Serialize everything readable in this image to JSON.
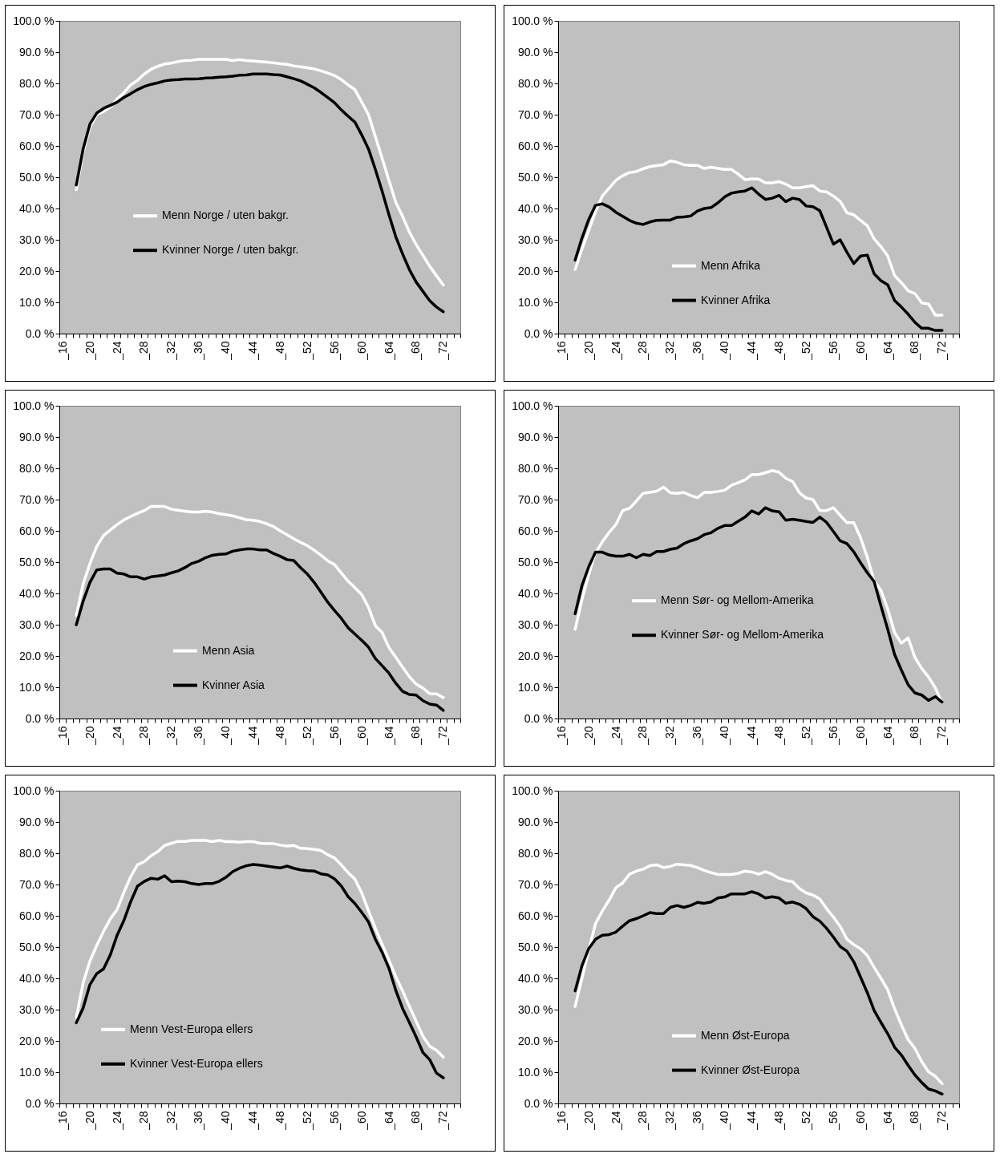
{
  "chart_data": [
    {
      "type": "line",
      "categories": [
        "_16",
        null,
        null,
        null,
        "_20",
        null,
        null,
        null,
        "_24",
        null,
        null,
        null,
        "_28",
        null,
        null,
        null,
        "_32",
        null,
        null,
        null,
        "_36",
        null,
        null,
        null,
        "_40",
        null,
        null,
        null,
        "_44",
        null,
        null,
        null,
        "_48",
        null,
        null,
        null,
        "_52",
        null,
        null,
        null,
        "_56",
        null,
        null,
        null,
        "_60",
        null,
        null,
        null,
        "_64",
        null,
        null,
        null,
        "_68",
        null,
        null,
        null,
        "_72",
        null,
        null
      ],
      "ylim": [
        0,
        100
      ],
      "yticks": [
        {
          "value": 0,
          "label": "0.0 %"
        },
        {
          "value": 10,
          "label": "10.0 %"
        },
        {
          "value": 20,
          "label": "20.0 %"
        },
        {
          "value": 30,
          "label": "30.0 %"
        },
        {
          "value": 40,
          "label": "40.0 %"
        },
        {
          "value": 50,
          "label": "50.0 %"
        },
        {
          "value": 60,
          "label": "60.0 %"
        },
        {
          "value": 70,
          "label": "70.0 %"
        },
        {
          "value": 80,
          "label": "80.0 %"
        },
        {
          "value": 90,
          "label": "90.0 %"
        },
        {
          "value": 100,
          "label": "100.0 %"
        }
      ],
      "legend": "left",
      "series": [
        {
          "name": "Menn Norge / uten bakgr.",
          "color": "#ffffff",
          "values": [
            null,
            null,
            46,
            58,
            66,
            70,
            71,
            72.5,
            75,
            77,
            79.5,
            81,
            83,
            84.5,
            85.5,
            86.2,
            86.5,
            87,
            87.3,
            87.4,
            87.7,
            87.7,
            87.7,
            87.7,
            87.7,
            87.3,
            87.6,
            87.3,
            87.2,
            87,
            86.8,
            86.6,
            86.3,
            86.1,
            85.6,
            85.3,
            85,
            84.6,
            84,
            83.3,
            82.5,
            81.2,
            79.5,
            78,
            74,
            70,
            63,
            56,
            49,
            42,
            37.5,
            32.5,
            28.5,
            25,
            21.5,
            18.5,
            15.5,
            null,
            null
          ]
        },
        {
          "name": "Kvinner Norge / uten bakgr.",
          "color": "#000000",
          "values": [
            null,
            null,
            47.5,
            59,
            67,
            70.5,
            72,
            73,
            74,
            75.5,
            76.7,
            78,
            79,
            79.7,
            80.2,
            80.8,
            81.1,
            81.2,
            81.4,
            81.4,
            81.5,
            81.7,
            81.8,
            82,
            82.1,
            82.3,
            82.6,
            82.7,
            83,
            83,
            83,
            82.8,
            82.7,
            82.1,
            81.5,
            80.8,
            79.7,
            78.6,
            77.1,
            75.5,
            73.8,
            71.5,
            69.5,
            67.6,
            63.5,
            59,
            52.5,
            45.5,
            38,
            31,
            25.5,
            20.5,
            16.5,
            13.5,
            10.5,
            8.5,
            7,
            null,
            null
          ]
        }
      ]
    },
    {
      "type": "line",
      "categories": [
        "_16",
        null,
        null,
        null,
        "_20",
        null,
        null,
        null,
        "_24",
        null,
        null,
        null,
        "_28",
        null,
        null,
        null,
        "_32",
        null,
        null,
        null,
        "_36",
        null,
        null,
        null,
        "_40",
        null,
        null,
        null,
        "_44",
        null,
        null,
        null,
        "_48",
        null,
        null,
        null,
        "_52",
        null,
        null,
        null,
        "_56",
        null,
        null,
        null,
        "_60",
        null,
        null,
        null,
        "_64",
        null,
        null,
        null,
        "_68",
        null,
        null,
        null,
        "_72",
        null,
        null
      ],
      "ylim": [
        0,
        100
      ],
      "yticks": [
        {
          "value": 0,
          "label": "0.0 %"
        },
        {
          "value": 10,
          "label": "10.0 %"
        },
        {
          "value": 20,
          "label": "20.0 %"
        },
        {
          "value": 30,
          "label": "30.0 %"
        },
        {
          "value": 40,
          "label": "40.0 %"
        },
        {
          "value": 50,
          "label": "50.0 %"
        },
        {
          "value": 60,
          "label": "60.0 %"
        },
        {
          "value": 70,
          "label": "70.0 %"
        },
        {
          "value": 80,
          "label": "80.0 %"
        },
        {
          "value": 90,
          "label": "90.0 %"
        },
        {
          "value": 100,
          "label": "100.0 %"
        }
      ],
      "legend": "bottom",
      "series": [
        {
          "name": "Menn Afrika",
          "color": "#ffffff",
          "values": [
            null,
            null,
            20.5,
            27,
            33,
            39,
            44,
            46.5,
            49,
            50.5,
            51.5,
            51.8,
            52.7,
            53.4,
            53.7,
            54,
            55.2,
            54.8,
            54,
            53.8,
            53.8,
            52.8,
            53.2,
            52.8,
            52.5,
            52.5,
            51,
            49.2,
            49.5,
            49.4,
            48.2,
            48.2,
            48.6,
            47.8,
            46.6,
            46.6,
            47,
            47.3,
            45.6,
            45.3,
            44,
            42.3,
            38.6,
            38,
            36.2,
            34.5,
            30.3,
            27.8,
            24.8,
            18.6,
            16.3,
            13.7,
            12.8,
            9.8,
            9.5,
            5.9,
            5.9,
            null,
            null
          ]
        },
        {
          "name": "Kvinner Afrika",
          "color": "#000000",
          "values": [
            null,
            null,
            23.5,
            30.5,
            36.5,
            41,
            41.5,
            40.5,
            38.8,
            37.5,
            36.2,
            35.3,
            34.9,
            35.7,
            36.2,
            36.3,
            36.3,
            37.2,
            37.3,
            37.6,
            39.2,
            40,
            40.3,
            41.8,
            43.7,
            44.9,
            45.3,
            45.6,
            46.6,
            44.6,
            42.9,
            43.3,
            44.2,
            42.2,
            43.3,
            42.9,
            40.8,
            40.6,
            39.3,
            34,
            28.6,
            30,
            26,
            22.4,
            24.8,
            25.1,
            19.1,
            16.9,
            15.6,
            10.6,
            8.5,
            6.2,
            3.6,
            1.7,
            1.7,
            1,
            1,
            null,
            null
          ]
        }
      ]
    },
    {
      "type": "line",
      "categories": [
        "_16",
        null,
        null,
        null,
        "_20",
        null,
        null,
        null,
        "_24",
        null,
        null,
        null,
        "_28",
        null,
        null,
        null,
        "_32",
        null,
        null,
        null,
        "_36",
        null,
        null,
        null,
        "_40",
        null,
        null,
        null,
        "_44",
        null,
        null,
        null,
        "_48",
        null,
        null,
        null,
        "_52",
        null,
        null,
        null,
        "_56",
        null,
        null,
        null,
        "_60",
        null,
        null,
        null,
        "_64",
        null,
        null,
        null,
        "_68",
        null,
        null,
        null,
        "_72",
        null,
        null
      ],
      "ylim": [
        0,
        100
      ],
      "yticks": [
        {
          "value": 0,
          "label": "0.0 %"
        },
        {
          "value": 10,
          "label": "10.0 %"
        },
        {
          "value": 20,
          "label": "20.0 %"
        },
        {
          "value": 30,
          "label": "30.0 %"
        },
        {
          "value": 40,
          "label": "40.0 %"
        },
        {
          "value": 50,
          "label": "50.0 %"
        },
        {
          "value": 60,
          "label": "60.0 %"
        },
        {
          "value": 70,
          "label": "70.0 %"
        },
        {
          "value": 80,
          "label": "80.0 %"
        },
        {
          "value": 90,
          "label": "90.0 %"
        },
        {
          "value": 100,
          "label": "100.0 %"
        }
      ],
      "legend": "bottom",
      "series": [
        {
          "name": "Menn Asia",
          "color": "#ffffff",
          "values": [
            null,
            null,
            33,
            43,
            49.5,
            55,
            58.5,
            60.3,
            62,
            63.5,
            64.6,
            65.6,
            66.5,
            67.8,
            67.8,
            67.8,
            66.9,
            66.6,
            66.3,
            66,
            66,
            66.3,
            66,
            65.5,
            65.2,
            64.8,
            64.2,
            63.6,
            63.4,
            63,
            62.3,
            61.4,
            60,
            58.8,
            57.5,
            56.3,
            55.3,
            53.8,
            52.2,
            50.4,
            49.2,
            46.5,
            43.9,
            41.8,
            39.6,
            35.5,
            29.7,
            27.5,
            22.7,
            19.6,
            16.5,
            13.4,
            11,
            9.7,
            7.9,
            7.9,
            6.7,
            null,
            null
          ]
        },
        {
          "name": "Kvinner Asia",
          "color": "#000000",
          "values": [
            null,
            null,
            30,
            37.5,
            43.5,
            47.5,
            47.8,
            47.8,
            46.5,
            46.2,
            45.3,
            45.3,
            44.6,
            45.3,
            45.6,
            45.9,
            46.6,
            47.2,
            48.3,
            49.6,
            50.3,
            51.4,
            52.2,
            52.5,
            52.6,
            53.5,
            53.9,
            54.2,
            54.2,
            53.9,
            53.9,
            52.8,
            51.9,
            50.8,
            50.5,
            48.2,
            46.2,
            43.5,
            40.4,
            37.2,
            34.5,
            32,
            29,
            27,
            25,
            22.8,
            19.2,
            16.9,
            14.5,
            11.3,
            8.7,
            7.7,
            7.5,
            5.7,
            4.6,
            4.3,
            2.6,
            null,
            null
          ]
        }
      ]
    },
    {
      "type": "line",
      "categories": [
        "_16",
        null,
        null,
        null,
        "_20",
        null,
        null,
        null,
        "_24",
        null,
        null,
        null,
        "_28",
        null,
        null,
        null,
        "_32",
        null,
        null,
        null,
        "_36",
        null,
        null,
        null,
        "_40",
        null,
        null,
        null,
        "_44",
        null,
        null,
        null,
        "_48",
        null,
        null,
        null,
        "_52",
        null,
        null,
        null,
        "_56",
        null,
        null,
        null,
        "_60",
        null,
        null,
        null,
        "_64",
        null,
        null,
        null,
        "_68",
        null,
        null,
        null,
        "_72",
        null,
        null
      ],
      "ylim": [
        0,
        100
      ],
      "yticks": [
        {
          "value": 0,
          "label": "0.0 %"
        },
        {
          "value": 10,
          "label": "10.0 %"
        },
        {
          "value": 20,
          "label": "20.0 %"
        },
        {
          "value": 30,
          "label": "30.0 %"
        },
        {
          "value": 40,
          "label": "40.0 %"
        },
        {
          "value": 50,
          "label": "50.0 %"
        },
        {
          "value": 60,
          "label": "60.0 %"
        },
        {
          "value": 70,
          "label": "70.0 %"
        },
        {
          "value": 80,
          "label": "80.0 %"
        },
        {
          "value": 90,
          "label": "90.0 %"
        },
        {
          "value": 100,
          "label": "100.0 %"
        }
      ],
      "legend": "left",
      "series": [
        {
          "name": "Menn Sør- og Mellom-Amerika",
          "color": "#ffffff",
          "values": [
            null,
            null,
            28.5,
            38,
            46,
            53,
            56.5,
            59.5,
            62,
            66.5,
            67.2,
            69.5,
            72,
            72.3,
            72.7,
            74,
            72.2,
            72,
            72.3,
            71.3,
            70.6,
            72.3,
            72.3,
            72.6,
            73,
            74.6,
            75.4,
            76.3,
            78,
            78,
            78.6,
            79.3,
            78.8,
            76.8,
            75.8,
            72.2,
            70.5,
            70,
            66.5,
            66.5,
            67.4,
            65,
            62.6,
            62.6,
            57.8,
            51.5,
            44,
            41,
            35,
            27.5,
            24.1,
            25.8,
            19.5,
            16,
            13.3,
            9.8,
            5,
            null,
            null
          ]
        },
        {
          "name": "Kvinner Sør- og Mellom-Amerika",
          "color": "#000000",
          "values": [
            null,
            null,
            33.5,
            42.5,
            48.5,
            53.2,
            53.2,
            52.3,
            51.9,
            51.9,
            52.5,
            51.4,
            52.5,
            52.1,
            53.4,
            53.4,
            54.1,
            54.5,
            55.9,
            56.8,
            57.5,
            58.8,
            59.4,
            60.8,
            61.7,
            61.7,
            63.1,
            64.4,
            66.4,
            65.4,
            67.4,
            66.4,
            66.1,
            63.4,
            63.7,
            63.4,
            63,
            62.7,
            64.4,
            62.7,
            59.8,
            56.8,
            55.9,
            53.3,
            49.8,
            46.6,
            43.8,
            36,
            28.5,
            20.5,
            15.5,
            10.8,
            8.2,
            7.5,
            5.8,
            7,
            5.2,
            null,
            null
          ]
        }
      ]
    },
    {
      "type": "line",
      "categories": [
        "_16",
        null,
        null,
        null,
        "_20",
        null,
        null,
        null,
        "_24",
        null,
        null,
        null,
        "_28",
        null,
        null,
        null,
        "_32",
        null,
        null,
        null,
        "_36",
        null,
        null,
        null,
        "_40",
        null,
        null,
        null,
        "_44",
        null,
        null,
        null,
        "_48",
        null,
        null,
        null,
        "_52",
        null,
        null,
        null,
        "_56",
        null,
        null,
        null,
        "_60",
        null,
        null,
        null,
        "_64",
        null,
        null,
        null,
        "_68",
        null,
        null,
        null,
        "_72",
        null,
        null
      ],
      "ylim": [
        0,
        100
      ],
      "yticks": [
        {
          "value": 0,
          "label": "0.0 %"
        },
        {
          "value": 10,
          "label": "10.0 %"
        },
        {
          "value": 20,
          "label": "20.0 %"
        },
        {
          "value": 30,
          "label": "30.0 %"
        },
        {
          "value": 40,
          "label": "40.0 %"
        },
        {
          "value": 50,
          "label": "50.0 %"
        },
        {
          "value": 60,
          "label": "60.0 %"
        },
        {
          "value": 70,
          "label": "70.0 %"
        },
        {
          "value": 80,
          "label": "80.0 %"
        },
        {
          "value": 90,
          "label": "90.0 %"
        },
        {
          "value": 100,
          "label": "100.0 %"
        }
      ],
      "legend": "bottom left",
      "series": [
        {
          "name": "Menn Vest-Europa ellers",
          "color": "#ffffff",
          "values": [
            null,
            null,
            27.5,
            38.5,
            45.5,
            50.5,
            55,
            59,
            62,
            67.5,
            72.5,
            76.3,
            77.3,
            79.2,
            80.5,
            82.5,
            83.2,
            83.8,
            83.8,
            84.1,
            84.1,
            84.1,
            83.7,
            84.1,
            83.7,
            83.7,
            83.5,
            83.7,
            83.7,
            83.2,
            83.1,
            83.1,
            82.6,
            82.3,
            82.5,
            81.6,
            81.5,
            81.2,
            80.9,
            79.5,
            78.5,
            76.2,
            73.8,
            71.7,
            67.3,
            61.6,
            56,
            50.9,
            45.8,
            40.6,
            36,
            31.1,
            26.3,
            21.5,
            18.3,
            17,
            14.8,
            null,
            null
          ]
        },
        {
          "name": "Kvinner Vest-Europa ellers",
          "color": "#000000",
          "values": [
            null,
            null,
            25.8,
            30.5,
            38,
            41.5,
            43,
            47.5,
            53.8,
            58.5,
            64.5,
            69.5,
            71,
            72,
            71.7,
            72.8,
            70.9,
            71.1,
            70.9,
            70.3,
            70,
            70.3,
            70.3,
            71,
            72.3,
            74.1,
            75.2,
            76,
            76.4,
            76.2,
            75.9,
            75.6,
            75.3,
            75.9,
            75.2,
            74.7,
            74.4,
            74.3,
            73.4,
            73.1,
            71.8,
            69.5,
            66.1,
            63.9,
            61.1,
            58,
            52.5,
            48.3,
            43.2,
            36.2,
            30.4,
            25.9,
            21.3,
            16.3,
            14,
            9.7,
            8.2,
            null,
            null
          ]
        }
      ]
    },
    {
      "type": "line",
      "categories": [
        "_16",
        null,
        null,
        null,
        "_20",
        null,
        null,
        null,
        "_24",
        null,
        null,
        null,
        "_28",
        null,
        null,
        null,
        "_32",
        null,
        null,
        null,
        "_36",
        null,
        null,
        null,
        "_40",
        null,
        null,
        null,
        "_44",
        null,
        null,
        null,
        "_48",
        null,
        null,
        null,
        "_52",
        null,
        null,
        null,
        "_56",
        null,
        null,
        null,
        "_60",
        null,
        null,
        null,
        "_64",
        null,
        null,
        null,
        "_68",
        null,
        null,
        null,
        "_72",
        null,
        null
      ],
      "ylim": [
        0,
        100
      ],
      "yticks": [
        {
          "value": 0,
          "label": "0.0 %"
        },
        {
          "value": 10,
          "label": "10.0 %"
        },
        {
          "value": 20,
          "label": "20.0 %"
        },
        {
          "value": 30,
          "label": "30.0 %"
        },
        {
          "value": 40,
          "label": "40.0 %"
        },
        {
          "value": 50,
          "label": "50.0 %"
        },
        {
          "value": 60,
          "label": "60.0 %"
        },
        {
          "value": 70,
          "label": "70.0 %"
        },
        {
          "value": 80,
          "label": "80.0 %"
        },
        {
          "value": 90,
          "label": "90.0 %"
        },
        {
          "value": 100,
          "label": "100.0 %"
        }
      ],
      "legend": "bottom",
      "series": [
        {
          "name": "Menn Øst-Europa",
          "color": "#ffffff",
          "values": [
            null,
            null,
            31,
            40,
            49,
            57.5,
            61.5,
            65,
            69,
            70.5,
            73.3,
            74.3,
            74.9,
            76,
            76.3,
            75.4,
            75.8,
            76.5,
            76.3,
            76.1,
            75.4,
            74.5,
            73.8,
            73.2,
            73.2,
            73.2,
            73.6,
            74.3,
            74,
            73.3,
            74.1,
            73.3,
            72,
            71.3,
            70.9,
            68.7,
            67.3,
            66.6,
            65.4,
            62.3,
            59.6,
            56.6,
            52.5,
            50.8,
            49.5,
            47.3,
            43.5,
            40,
            36.3,
            30.3,
            25.2,
            20.4,
            17.6,
            13.4,
            10.1,
            8.7,
            6.3,
            null,
            null
          ]
        },
        {
          "name": "Kvinner Øst-Europa",
          "color": "#000000",
          "values": [
            null,
            null,
            36,
            44,
            49.5,
            52.5,
            53.8,
            54,
            54.8,
            56.7,
            58.4,
            59.1,
            60,
            61,
            60.7,
            60.7,
            62.7,
            63.3,
            62.7,
            63.3,
            64.3,
            64,
            64.4,
            65.7,
            66,
            67,
            67,
            67,
            67.7,
            67,
            65.7,
            66.1,
            65.7,
            64,
            64.4,
            63.7,
            62.3,
            59.7,
            58.3,
            56,
            53.2,
            50.2,
            48.7,
            45.3,
            40.4,
            35.4,
            29.7,
            25.9,
            22.3,
            18,
            15.5,
            12.2,
            9.1,
            6.7,
            4.6,
            4,
            3,
            null,
            null
          ]
        }
      ]
    }
  ]
}
